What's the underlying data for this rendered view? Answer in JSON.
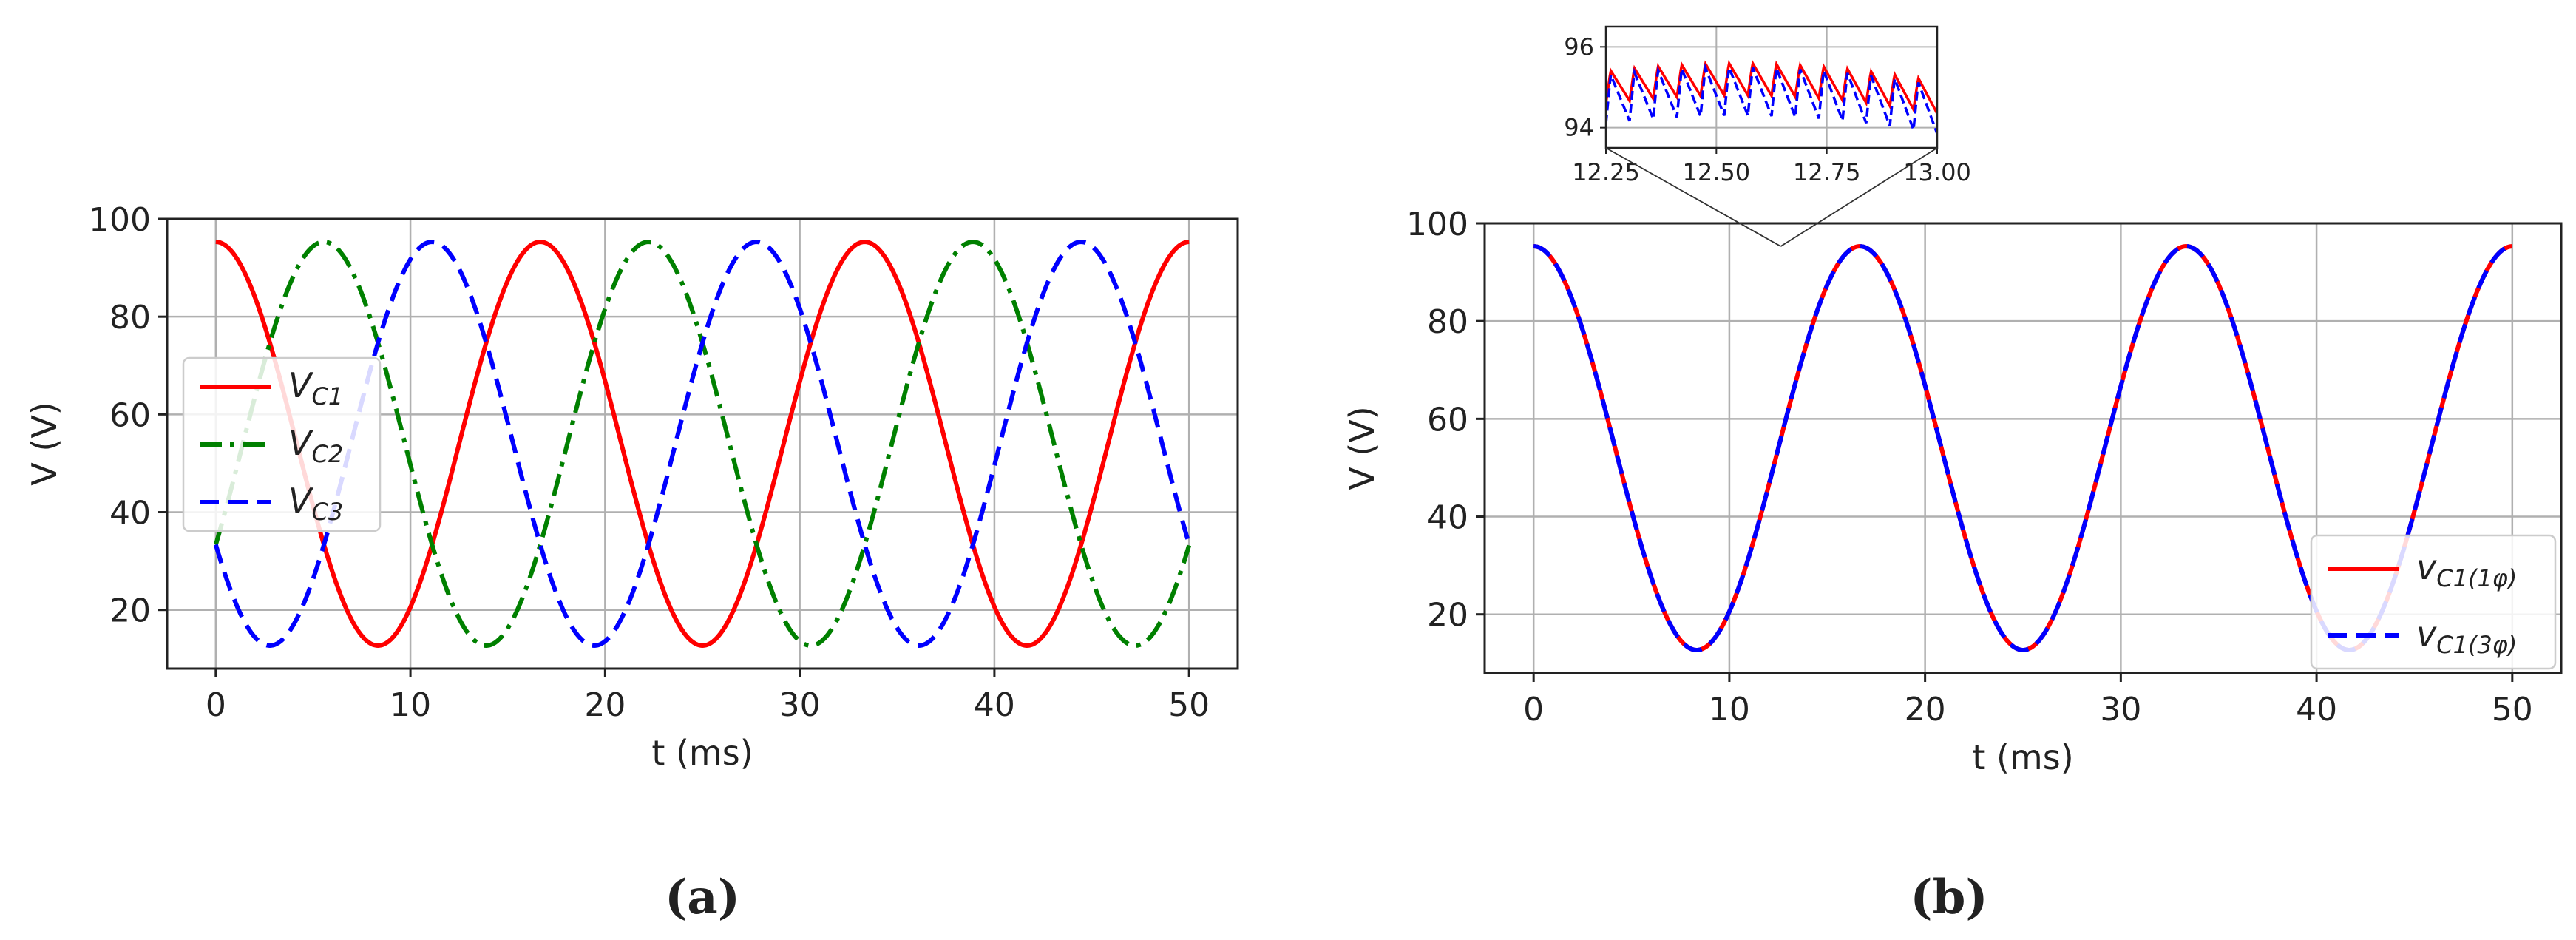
{
  "chart_data": [
    {
      "panel_label": "(a)",
      "type": "line",
      "xlabel": "t (ms)",
      "ylabel": "V (V)",
      "xlim": [
        -2.5,
        52.5
      ],
      "ylim": [
        8,
        100
      ],
      "xticks": [
        0,
        10,
        20,
        30,
        40,
        50
      ],
      "yticks": [
        20,
        40,
        60,
        80,
        100
      ],
      "grid": true,
      "legend_placement": "center-left",
      "waveform": {
        "offset": 54,
        "amplitude": 41.3,
        "period_ms": 16.67,
        "duration_ms": 50
      },
      "series": [
        {
          "name": "V_C1",
          "color": "#ff0000",
          "style": "solid",
          "phase_deg": 0
        },
        {
          "name": "V_C2",
          "color": "#008000",
          "style": "dashdot",
          "phase_deg": -120
        },
        {
          "name": "V_C3",
          "color": "#0000ff",
          "style": "dashed",
          "phase_deg": 120
        }
      ]
    },
    {
      "panel_label": "(b)",
      "type": "line",
      "xlabel": "t (ms)",
      "ylabel": "V (V)",
      "xlim": [
        -2.5,
        52.5
      ],
      "ylim": [
        8,
        100
      ],
      "xticks": [
        0,
        10,
        20,
        30,
        40,
        50
      ],
      "yticks": [
        20,
        40,
        60,
        80,
        100
      ],
      "grid": true,
      "legend_placement": "lower-right",
      "waveform": {
        "offset": 54,
        "amplitude": 41.3,
        "period_ms": 16.67,
        "duration_ms": 50
      },
      "series": [
        {
          "name": "v_C1(1φ)",
          "color": "#ff0000",
          "style": "solid",
          "phase_deg": 0
        },
        {
          "name": "v_C1(3φ)",
          "color": "#0000ff",
          "style": "dashed",
          "phase_deg": 0
        }
      ],
      "inset": {
        "xlim": [
          12.25,
          13.0
        ],
        "ylim": [
          93.5,
          96.5
        ],
        "xticks": [
          "12.25",
          "12.50",
          "12.75",
          "13.00"
        ],
        "yticks": [
          "94",
          "96"
        ],
        "ripple_cycles": 14,
        "series": [
          {
            "name": "v_C1(1φ)",
            "color": "#ff0000",
            "style": "solid",
            "base_level": 95.2,
            "ripple_pp": 0.8
          },
          {
            "name": "v_C1(3φ)",
            "color": "#0000ff",
            "style": "dashed",
            "base_level": 94.9,
            "ripple_pp": 1.2
          }
        ]
      }
    }
  ]
}
